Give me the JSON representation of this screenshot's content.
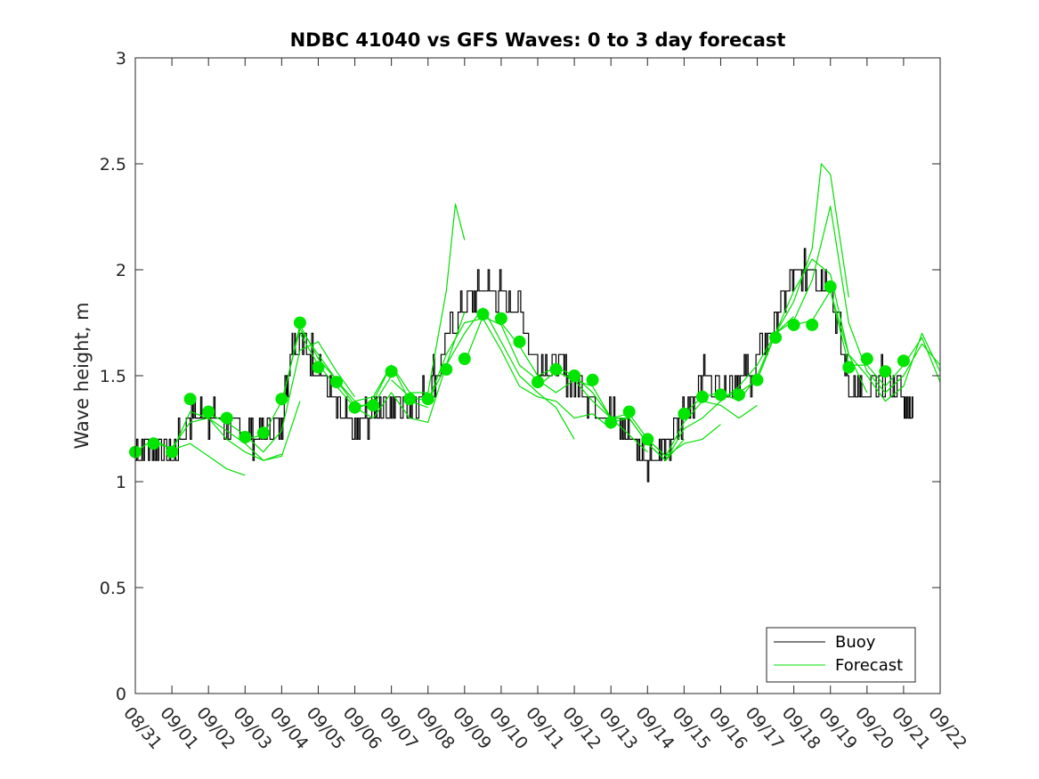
{
  "chart_data": {
    "type": "line",
    "title": "NDBC 41040 vs GFS Waves: 0 to 3 day forecast",
    "xlabel": "",
    "ylabel": "Wave height, m",
    "xlim": [
      0,
      22
    ],
    "ylim": [
      0,
      3
    ],
    "yticks": [
      0,
      0.5,
      1,
      1.5,
      2,
      2.5,
      3
    ],
    "ytick_labels": [
      "0",
      "0.5",
      "1",
      "1.5",
      "2",
      "2.5",
      "3"
    ],
    "xtick_labels": [
      "08/31",
      "09/01",
      "09/02",
      "09/03",
      "09/04",
      "09/05",
      "09/06",
      "09/07",
      "09/08",
      "09/09",
      "09/10",
      "09/11",
      "09/12",
      "09/13",
      "09/14",
      "09/15",
      "09/16",
      "09/17",
      "09/18",
      "09/19",
      "09/20",
      "09/21",
      "09/22"
    ],
    "legend": {
      "position": "bottom-right",
      "entries": [
        {
          "label": "Buoy",
          "color": "#000000"
        },
        {
          "label": "Forecast",
          "color": "#00e000"
        }
      ]
    },
    "colors": {
      "buoy": "#000000",
      "forecast": "#00e000",
      "markers": "#00e600"
    },
    "buoy": {
      "name": "Buoy",
      "x": [
        0,
        0.5,
        1,
        1.5,
        2,
        2.5,
        3,
        3.5,
        4,
        4.25,
        4.5,
        5,
        5.5,
        6,
        6.5,
        7,
        7.5,
        8,
        8.5,
        9,
        9.5,
        10,
        10.5,
        11,
        11.5,
        12,
        12.5,
        13,
        13.5,
        14,
        14.5,
        15,
        15.5,
        16,
        16.5,
        17,
        17.5,
        18,
        18.5,
        19,
        19.5,
        20,
        20.5,
        21,
        21.25
      ],
      "y": [
        1.14,
        1.18,
        1.12,
        1.3,
        1.32,
        1.25,
        1.22,
        1.22,
        1.28,
        1.62,
        1.66,
        1.55,
        1.35,
        1.22,
        1.35,
        1.36,
        1.38,
        1.44,
        1.66,
        1.86,
        1.92,
        1.88,
        1.8,
        1.55,
        1.56,
        1.48,
        1.37,
        1.3,
        1.22,
        1.12,
        1.15,
        1.32,
        1.5,
        1.47,
        1.45,
        1.55,
        1.75,
        1.98,
        2.02,
        1.92,
        1.45,
        1.38,
        1.5,
        1.42,
        1.3
      ]
    },
    "forecast_markers": {
      "x": [
        0,
        0.5,
        1,
        1.5,
        2,
        2.5,
        3,
        3.5,
        4,
        4.5,
        5,
        5.5,
        6,
        6.5,
        7,
        7.5,
        8,
        8.5,
        9,
        9.5,
        10,
        10.5,
        11,
        11.5,
        12,
        12.5,
        13,
        13.5,
        14,
        15,
        15.5,
        16,
        16.5,
        17,
        17.5,
        18,
        18.5,
        19,
        19.5,
        20,
        20.5,
        21
      ],
      "y": [
        1.14,
        1.18,
        1.14,
        1.39,
        1.33,
        1.3,
        1.21,
        1.23,
        1.39,
        1.75,
        1.54,
        1.47,
        1.35,
        1.36,
        1.52,
        1.39,
        1.39,
        1.53,
        1.58,
        1.79,
        1.77,
        1.66,
        1.47,
        1.53,
        1.5,
        1.48,
        1.28,
        1.33,
        1.2,
        1.32,
        1.4,
        1.41,
        1.41,
        1.48,
        1.68,
        1.74,
        1.74,
        1.92,
        1.54,
        1.58,
        1.52,
        1.57
      ]
    },
    "forecast_runs": [
      {
        "name": "Forecast",
        "x": [
          0,
          0.5,
          1,
          1.5,
          2,
          2.5,
          3
        ],
        "y": [
          1.14,
          1.2,
          1.15,
          1.18,
          1.12,
          1.06,
          1.03
        ]
      },
      {
        "name": "Forecast",
        "x": [
          0.5,
          1,
          1.5,
          2,
          2.5,
          3,
          3.5,
          4
        ],
        "y": [
          1.18,
          1.16,
          1.28,
          1.3,
          1.2,
          1.14,
          1.1,
          1.13
        ]
      },
      {
        "name": "Forecast",
        "x": [
          1,
          1.5,
          2,
          2.5,
          3,
          3.5,
          4,
          4.5
        ],
        "y": [
          1.14,
          1.33,
          1.3,
          1.24,
          1.18,
          1.1,
          1.12,
          1.38
        ]
      },
      {
        "name": "Forecast",
        "x": [
          2,
          2.5,
          3,
          3.5,
          4,
          4.5,
          5,
          5.5,
          6
        ],
        "y": [
          1.32,
          1.28,
          1.22,
          1.14,
          1.24,
          1.62,
          1.66,
          1.52,
          1.4
        ]
      },
      {
        "name": "Forecast",
        "x": [
          3,
          3.5,
          4,
          4.5,
          5,
          5.5,
          6,
          6.5,
          7
        ],
        "y": [
          1.2,
          1.22,
          1.38,
          1.72,
          1.6,
          1.48,
          1.36,
          1.36,
          1.5
        ]
      },
      {
        "name": "Forecast",
        "x": [
          4,
          4.5,
          5,
          5.5,
          6,
          6.5,
          7,
          7.5,
          8
        ],
        "y": [
          1.36,
          1.74,
          1.58,
          1.48,
          1.38,
          1.4,
          1.55,
          1.38,
          1.35
        ]
      },
      {
        "name": "Forecast",
        "x": [
          4.5,
          5,
          5.5,
          6,
          6.5,
          7,
          7.5,
          8,
          8.5,
          9
        ],
        "y": [
          1.7,
          1.55,
          1.45,
          1.35,
          1.3,
          1.42,
          1.3,
          1.28,
          1.55,
          1.8
        ]
      },
      {
        "name": "Forecast",
        "x": [
          6,
          6.5,
          7,
          7.5,
          8,
          8.5,
          8.75,
          9
        ],
        "y": [
          1.34,
          1.38,
          1.55,
          1.42,
          1.42,
          1.9,
          2.31,
          2.14
        ]
      },
      {
        "name": "Forecast",
        "x": [
          7,
          7.5,
          8,
          8.5,
          9,
          9.5,
          10,
          10.5,
          11,
          11.5,
          12
        ],
        "y": [
          1.48,
          1.4,
          1.38,
          1.55,
          1.7,
          1.82,
          1.66,
          1.5,
          1.42,
          1.35,
          1.2
        ]
      },
      {
        "name": "Forecast",
        "x": [
          8,
          8.5,
          9,
          9.5,
          10,
          10.5,
          11,
          11.5,
          12,
          12.5,
          13
        ],
        "y": [
          1.38,
          1.6,
          1.75,
          1.77,
          1.62,
          1.45,
          1.4,
          1.38,
          1.3,
          1.32,
          1.25
        ]
      },
      {
        "name": "Forecast",
        "x": [
          9,
          9.5,
          10,
          10.5,
          11,
          11.5,
          12,
          12.5,
          13,
          13.5,
          14
        ],
        "y": [
          1.56,
          1.78,
          1.74,
          1.55,
          1.48,
          1.42,
          1.48,
          1.38,
          1.3,
          1.22,
          1.14
        ]
      },
      {
        "name": "Forecast",
        "x": [
          10,
          10.5,
          11,
          11.5,
          12,
          12.5,
          13,
          13.5,
          14,
          14.5,
          15
        ],
        "y": [
          1.75,
          1.64,
          1.5,
          1.54,
          1.5,
          1.42,
          1.3,
          1.3,
          1.18,
          1.1,
          1.2
        ]
      },
      {
        "name": "Forecast",
        "x": [
          11,
          11.5,
          12,
          12.5,
          13,
          13.5,
          14,
          14.5,
          15,
          15.5,
          16
        ],
        "y": [
          1.45,
          1.52,
          1.48,
          1.45,
          1.3,
          1.32,
          1.2,
          1.12,
          1.18,
          1.2,
          1.27
        ]
      },
      {
        "name": "Forecast",
        "x": [
          13,
          13.5,
          14,
          14.5,
          15,
          15.5,
          16,
          16.5,
          17,
          17.5,
          18
        ],
        "y": [
          1.28,
          1.3,
          1.18,
          1.1,
          1.25,
          1.3,
          1.38,
          1.45,
          1.55,
          1.7,
          1.78
        ]
      },
      {
        "name": "Forecast",
        "x": [
          14,
          14.5,
          15,
          15.5,
          16,
          16.5,
          17
        ],
        "y": [
          1.2,
          1.12,
          1.28,
          1.38,
          1.36,
          1.3,
          1.36
        ]
      },
      {
        "name": "Forecast",
        "x": [
          15,
          15.5,
          16,
          16.5,
          17,
          17.5,
          18,
          18.5,
          19,
          19.5,
          20
        ],
        "y": [
          1.32,
          1.4,
          1.42,
          1.38,
          1.5,
          1.7,
          1.9,
          2.05,
          1.98,
          1.6,
          1.42
        ]
      },
      {
        "name": "Forecast",
        "x": [
          16,
          16.5,
          17,
          17.5,
          18,
          18.5,
          18.75,
          19,
          19.5
        ],
        "y": [
          1.4,
          1.42,
          1.48,
          1.7,
          1.85,
          2.1,
          2.5,
          2.45,
          1.87
        ]
      },
      {
        "name": "Forecast",
        "x": [
          17,
          17.5,
          18,
          18.5,
          19,
          19.5,
          20,
          20.5,
          21,
          21.5,
          22
        ],
        "y": [
          1.48,
          1.7,
          1.76,
          1.95,
          2.3,
          1.75,
          1.52,
          1.42,
          1.5,
          1.65,
          1.55
        ]
      },
      {
        "name": "Forecast",
        "x": [
          18,
          18.5,
          19,
          19.5,
          20,
          20.5,
          21,
          21.5,
          22
        ],
        "y": [
          1.74,
          1.76,
          1.9,
          1.6,
          1.5,
          1.38,
          1.45,
          1.7,
          1.52
        ]
      },
      {
        "name": "Forecast",
        "x": [
          19,
          19.5,
          20,
          20.5,
          21,
          21.5,
          22
        ],
        "y": [
          1.9,
          1.55,
          1.55,
          1.45,
          1.55,
          1.68,
          1.47
        ]
      }
    ]
  }
}
